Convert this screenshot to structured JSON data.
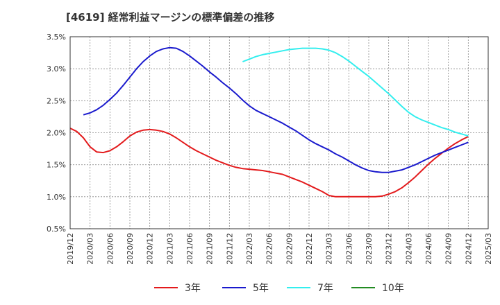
{
  "chart_data": {
    "type": "line",
    "title": "[4619]  経常利益マージンの標準偏差の推移",
    "xlabel": "",
    "ylabel": "",
    "x_ticks": [
      "2019/12",
      "2020/03",
      "2020/06",
      "2020/09",
      "2020/12",
      "2021/03",
      "2021/06",
      "2021/09",
      "2021/12",
      "2022/03",
      "2022/06",
      "2022/09",
      "2022/12",
      "2023/03",
      "2023/06",
      "2023/09",
      "2023/12",
      "2024/03",
      "2024/06",
      "2024/09",
      "2024/12",
      "2025/03"
    ],
    "y_ticks": [
      "0.5%",
      "1.0%",
      "1.5%",
      "2.0%",
      "2.5%",
      "3.0%",
      "3.5%"
    ],
    "ylim": [
      0.5,
      3.5
    ],
    "grid": true,
    "legend_position": "bottom",
    "series": [
      {
        "name": "3年",
        "color": "#e31a1c",
        "points": [
          [
            "2019/12",
            2.07
          ],
          [
            "2020/01",
            2.02
          ],
          [
            "2020/02",
            1.92
          ],
          [
            "2020/03",
            1.78
          ],
          [
            "2020/04",
            1.7
          ],
          [
            "2020/05",
            1.69
          ],
          [
            "2020/06",
            1.72
          ],
          [
            "2020/07",
            1.78
          ],
          [
            "2020/08",
            1.86
          ],
          [
            "2020/09",
            1.95
          ],
          [
            "2020/10",
            2.01
          ],
          [
            "2020/11",
            2.04
          ],
          [
            "2020/12",
            2.05
          ],
          [
            "2021/01",
            2.04
          ],
          [
            "2021/02",
            2.02
          ],
          [
            "2021/03",
            1.98
          ],
          [
            "2021/04",
            1.92
          ],
          [
            "2021/05",
            1.85
          ],
          [
            "2021/06",
            1.78
          ],
          [
            "2021/07",
            1.72
          ],
          [
            "2021/08",
            1.67
          ],
          [
            "2021/09",
            1.62
          ],
          [
            "2021/10",
            1.57
          ],
          [
            "2021/11",
            1.53
          ],
          [
            "2021/12",
            1.49
          ],
          [
            "2022/01",
            1.46
          ],
          [
            "2022/02",
            1.44
          ],
          [
            "2022/03",
            1.43
          ],
          [
            "2022/04",
            1.42
          ],
          [
            "2022/05",
            1.41
          ],
          [
            "2022/06",
            1.39
          ],
          [
            "2022/07",
            1.37
          ],
          [
            "2022/08",
            1.35
          ],
          [
            "2022/09",
            1.31
          ],
          [
            "2022/10",
            1.27
          ],
          [
            "2022/11",
            1.23
          ],
          [
            "2022/12",
            1.18
          ],
          [
            "2023/01",
            1.13
          ],
          [
            "2023/02",
            1.08
          ],
          [
            "2023/03",
            1.02
          ],
          [
            "2023/04",
            1.0
          ],
          [
            "2023/05",
            1.0
          ],
          [
            "2023/06",
            1.0
          ],
          [
            "2023/07",
            1.0
          ],
          [
            "2023/08",
            1.0
          ],
          [
            "2023/09",
            1.0
          ],
          [
            "2023/10",
            1.0
          ],
          [
            "2023/11",
            1.01
          ],
          [
            "2023/12",
            1.04
          ],
          [
            "2024/01",
            1.08
          ],
          [
            "2024/02",
            1.14
          ],
          [
            "2024/03",
            1.22
          ],
          [
            "2024/04",
            1.31
          ],
          [
            "2024/05",
            1.41
          ],
          [
            "2024/06",
            1.51
          ],
          [
            "2024/07",
            1.6
          ],
          [
            "2024/08",
            1.68
          ],
          [
            "2024/09",
            1.76
          ],
          [
            "2024/10",
            1.83
          ],
          [
            "2024/11",
            1.89
          ],
          [
            "2024/12",
            1.94
          ]
        ]
      },
      {
        "name": "5年",
        "color": "#1a1acd",
        "points": [
          [
            "2020/02",
            2.28
          ],
          [
            "2020/03",
            2.31
          ],
          [
            "2020/04",
            2.36
          ],
          [
            "2020/05",
            2.43
          ],
          [
            "2020/06",
            2.52
          ],
          [
            "2020/07",
            2.62
          ],
          [
            "2020/08",
            2.74
          ],
          [
            "2020/09",
            2.87
          ],
          [
            "2020/10",
            3.0
          ],
          [
            "2020/11",
            3.11
          ],
          [
            "2020/12",
            3.2
          ],
          [
            "2021/01",
            3.27
          ],
          [
            "2021/02",
            3.31
          ],
          [
            "2021/03",
            3.33
          ],
          [
            "2021/04",
            3.32
          ],
          [
            "2021/05",
            3.27
          ],
          [
            "2021/06",
            3.2
          ],
          [
            "2021/07",
            3.12
          ],
          [
            "2021/08",
            3.04
          ],
          [
            "2021/09",
            2.95
          ],
          [
            "2021/10",
            2.87
          ],
          [
            "2021/11",
            2.78
          ],
          [
            "2021/12",
            2.7
          ],
          [
            "2022/01",
            2.61
          ],
          [
            "2022/02",
            2.51
          ],
          [
            "2022/03",
            2.42
          ],
          [
            "2022/04",
            2.35
          ],
          [
            "2022/05",
            2.3
          ],
          [
            "2022/06",
            2.25
          ],
          [
            "2022/07",
            2.2
          ],
          [
            "2022/08",
            2.15
          ],
          [
            "2022/09",
            2.09
          ],
          [
            "2022/10",
            2.03
          ],
          [
            "2022/11",
            1.96
          ],
          [
            "2022/12",
            1.89
          ],
          [
            "2023/01",
            1.83
          ],
          [
            "2023/02",
            1.78
          ],
          [
            "2023/03",
            1.73
          ],
          [
            "2023/04",
            1.67
          ],
          [
            "2023/05",
            1.62
          ],
          [
            "2023/06",
            1.56
          ],
          [
            "2023/07",
            1.5
          ],
          [
            "2023/08",
            1.45
          ],
          [
            "2023/09",
            1.41
          ],
          [
            "2023/10",
            1.39
          ],
          [
            "2023/11",
            1.38
          ],
          [
            "2023/12",
            1.38
          ],
          [
            "2024/01",
            1.4
          ],
          [
            "2024/02",
            1.42
          ],
          [
            "2024/03",
            1.46
          ],
          [
            "2024/04",
            1.5
          ],
          [
            "2024/05",
            1.55
          ],
          [
            "2024/06",
            1.6
          ],
          [
            "2024/07",
            1.65
          ],
          [
            "2024/08",
            1.69
          ],
          [
            "2024/09",
            1.73
          ],
          [
            "2024/10",
            1.77
          ],
          [
            "2024/11",
            1.81
          ],
          [
            "2024/12",
            1.85
          ]
        ]
      },
      {
        "name": "7年",
        "color": "#33eeee",
        "points": [
          [
            "2022/02",
            3.11
          ],
          [
            "2022/03",
            3.15
          ],
          [
            "2022/04",
            3.19
          ],
          [
            "2022/05",
            3.22
          ],
          [
            "2022/06",
            3.24
          ],
          [
            "2022/07",
            3.26
          ],
          [
            "2022/08",
            3.28
          ],
          [
            "2022/09",
            3.3
          ],
          [
            "2022/10",
            3.31
          ],
          [
            "2022/11",
            3.32
          ],
          [
            "2022/12",
            3.32
          ],
          [
            "2023/01",
            3.32
          ],
          [
            "2023/02",
            3.31
          ],
          [
            "2023/03",
            3.29
          ],
          [
            "2023/04",
            3.25
          ],
          [
            "2023/05",
            3.19
          ],
          [
            "2023/06",
            3.12
          ],
          [
            "2023/07",
            3.04
          ],
          [
            "2023/08",
            2.96
          ],
          [
            "2023/09",
            2.88
          ],
          [
            "2023/10",
            2.79
          ],
          [
            "2023/11",
            2.7
          ],
          [
            "2023/12",
            2.61
          ],
          [
            "2024/01",
            2.51
          ],
          [
            "2024/02",
            2.41
          ],
          [
            "2024/03",
            2.32
          ],
          [
            "2024/04",
            2.25
          ],
          [
            "2024/05",
            2.2
          ],
          [
            "2024/06",
            2.16
          ],
          [
            "2024/07",
            2.12
          ],
          [
            "2024/08",
            2.08
          ],
          [
            "2024/09",
            2.05
          ],
          [
            "2024/10",
            2.01
          ],
          [
            "2024/11",
            1.98
          ],
          [
            "2024/12",
            1.95
          ]
        ]
      },
      {
        "name": "10年",
        "color": "#228b22",
        "points": []
      }
    ]
  }
}
